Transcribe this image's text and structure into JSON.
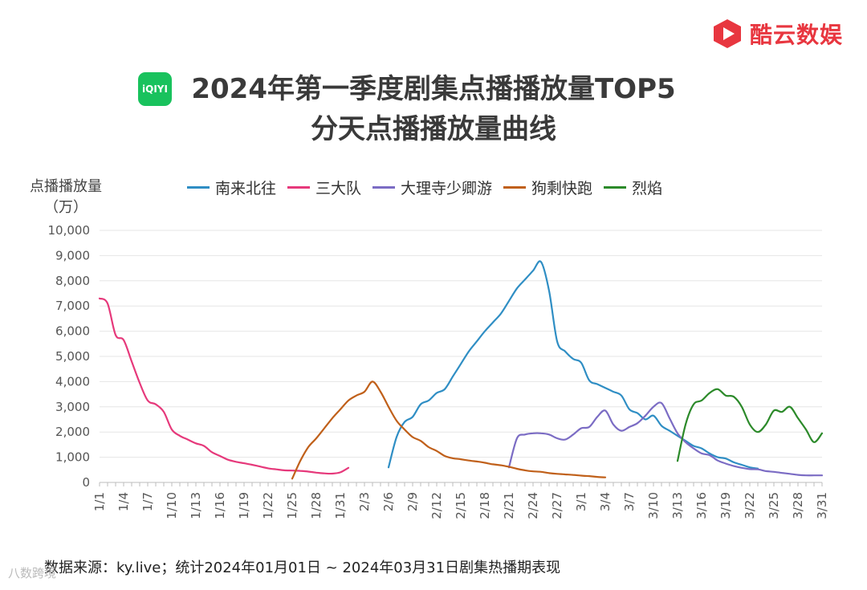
{
  "brand": {
    "name": "酷云数娱",
    "logo_icon": "play-hexagon-icon",
    "color": "#e8363f"
  },
  "platform_logo": {
    "text": "iQIYI",
    "icon": "iqiyi-logo-icon",
    "color": "#19c25d"
  },
  "title_line1": "2024年第一季度剧集点播播放量TOP5",
  "title_line2": "分天点播播放量曲线",
  "footnote": "数据来源：ky.live；统计2024年01月01日 ~ 2024年03月31日剧集热播期表现",
  "watermark": "八数跨境",
  "chart_data": {
    "type": "line",
    "title": "2024年第一季度剧集点播播放量TOP5 分天点播播放量曲线",
    "ylabel": "点播播放量（万）",
    "ylabel_line1": "点播播放量",
    "ylabel_line2": "（万）",
    "xlabel": "",
    "ylim": [
      0,
      10000
    ],
    "yticks": [
      0,
      1000,
      2000,
      3000,
      4000,
      5000,
      6000,
      7000,
      8000,
      9000,
      10000
    ],
    "ytick_labels": [
      "0",
      "1,000",
      "2,000",
      "3,000",
      "4,000",
      "5,000",
      "6,000",
      "7,000",
      "8,000",
      "9,000",
      "10,000"
    ],
    "x_tick_labels": [
      "1/1",
      "1/4",
      "1/7",
      "1/10",
      "1/13",
      "1/16",
      "1/19",
      "1/22",
      "1/25",
      "1/28",
      "1/31",
      "2/3",
      "2/6",
      "2/9",
      "2/12",
      "2/15",
      "2/18",
      "2/21",
      "2/24",
      "2/27",
      "3/1",
      "3/4",
      "3/7",
      "3/10",
      "3/13",
      "3/16",
      "3/19",
      "3/22",
      "3/25",
      "3/28",
      "3/31"
    ],
    "grid": true,
    "legend_position": "top",
    "series": [
      {
        "name": "南来北往",
        "color": "#2f8ec4",
        "start_day": 37,
        "values": [
          600,
          1800,
          2400,
          2600,
          3100,
          3250,
          3550,
          3700,
          4200,
          4700,
          5200,
          5600,
          6000,
          6350,
          6700,
          7200,
          7700,
          8050,
          8400,
          8750,
          7600,
          5600,
          5200,
          4900,
          4750,
          4050,
          3900,
          3750,
          3600,
          3450,
          2900,
          2750,
          2500,
          2650,
          2250,
          2050,
          1850,
          1650,
          1450,
          1350,
          1150,
          1000,
          950,
          800,
          700,
          600,
          550
        ]
      },
      {
        "name": "三大队",
        "color": "#e6397b",
        "start_day": 1,
        "values": [
          7300,
          7100,
          5850,
          5650,
          4800,
          3950,
          3250,
          3100,
          2800,
          2100,
          1850,
          1700,
          1550,
          1450,
          1200,
          1050,
          900,
          820,
          760,
          700,
          630,
          560,
          520,
          480,
          470,
          460,
          430,
          390,
          360,
          350,
          400,
          580
        ]
      },
      {
        "name": "大理寺少卿游",
        "color": "#7b6cc4",
        "start_day": 52,
        "values": [
          600,
          1750,
          1900,
          1950,
          1950,
          1900,
          1750,
          1700,
          1900,
          2150,
          2200,
          2600,
          2850,
          2300,
          2050,
          2200,
          2350,
          2650,
          3000,
          3150,
          2550,
          1950,
          1600,
          1350,
          1150,
          1080,
          870,
          750,
          650,
          580,
          530,
          520,
          450,
          420,
          380,
          340,
          300,
          280,
          280,
          280
        ]
      },
      {
        "name": "狗剩快跑",
        "color": "#c0601a",
        "start_day": 25,
        "values": [
          150,
          850,
          1400,
          1750,
          2150,
          2550,
          2900,
          3250,
          3450,
          3600,
          4000,
          3600,
          3000,
          2450,
          2100,
          1800,
          1650,
          1400,
          1250,
          1050,
          960,
          920,
          870,
          830,
          780,
          720,
          680,
          620,
          540,
          480,
          440,
          420,
          370,
          340,
          320,
          300,
          270,
          250,
          220,
          200
        ]
      },
      {
        "name": "烈焰",
        "color": "#2c8a2a",
        "start_day": 73,
        "values": [
          850,
          2300,
          3100,
          3250,
          3550,
          3700,
          3450,
          3400,
          3000,
          2300,
          2000,
          2300,
          2850,
          2800,
          3000,
          2550,
          2100,
          1600,
          1950
        ]
      }
    ]
  }
}
